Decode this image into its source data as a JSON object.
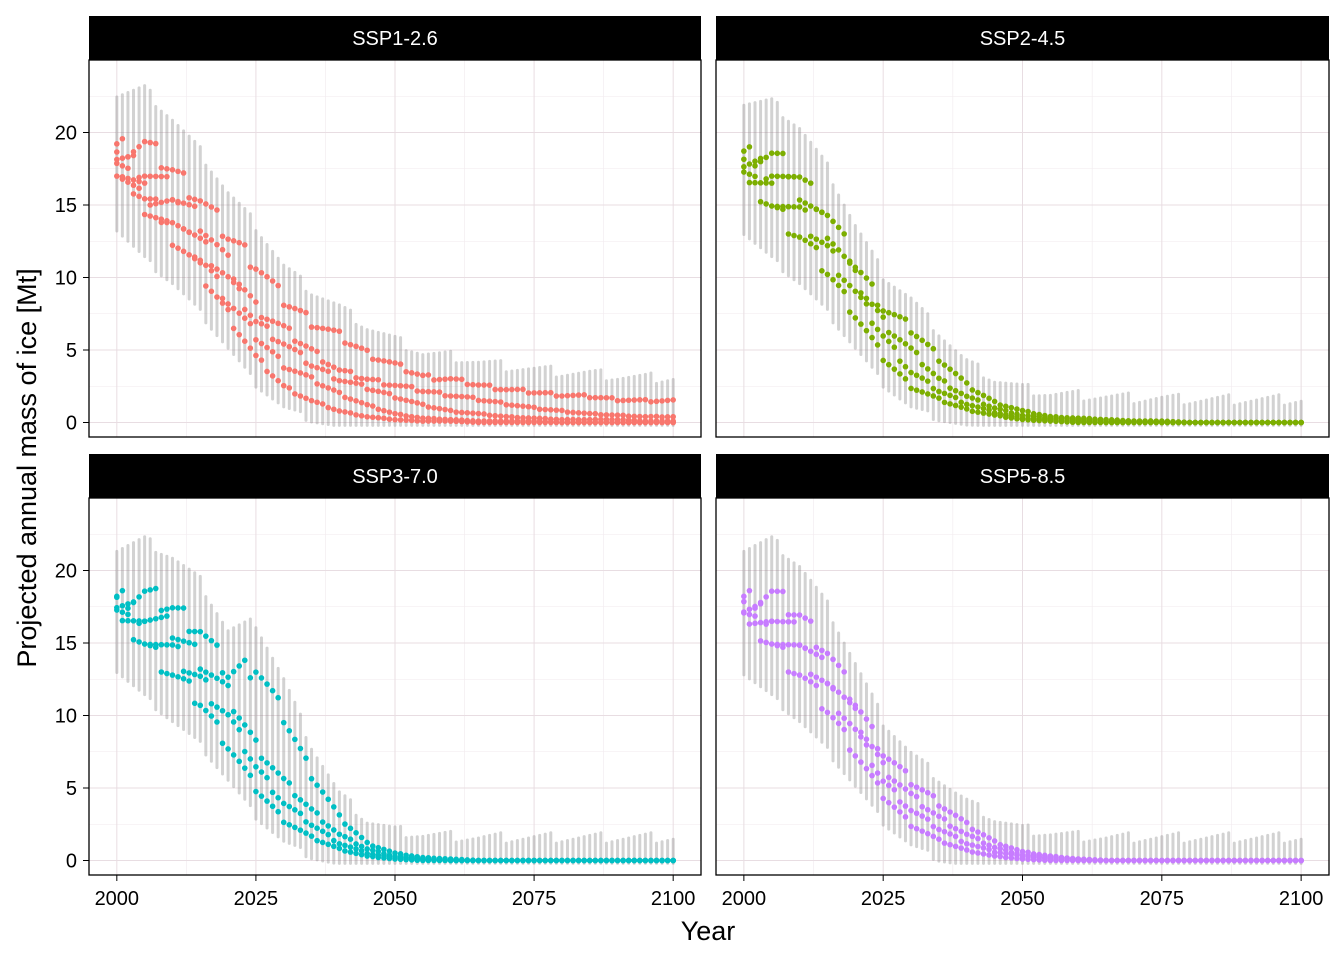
{
  "chart_data": {
    "type": "scatter",
    "facet_layout": "2x2 grid",
    "xlabel": "Year",
    "ylabel": "Projected annual mass of ice [Mt]",
    "xlim": [
      1995,
      2105
    ],
    "ylim": [
      -1.0,
      25.0
    ],
    "x_ticks": [
      2000,
      2025,
      2050,
      2075,
      2100
    ],
    "y_ticks": [
      0,
      5,
      10,
      15,
      20
    ],
    "x_tick_labels": [
      "2000",
      "2025",
      "2050",
      "2075",
      "2100"
    ],
    "y_tick_labels": [
      "0",
      "5",
      "10",
      "15",
      "20"
    ],
    "grid": true,
    "strip_style": "black background, white text",
    "uncertainty_bars": "grey vertical ranges per year",
    "panels": [
      {
        "title": "SSP1-2.6",
        "color": "#F8766D",
        "series": [
          {
            "x": [
              2000,
              2005,
              2010,
              2015,
              2020,
              2025,
              2030,
              2035,
              2040,
              2045,
              2050,
              2055,
              2060,
              2065,
              2070,
              2075,
              2080,
              2085,
              2090,
              2095,
              2100
            ],
            "y": [
              19.0,
              19.3,
              17.5,
              15.5,
              13.0,
              11.0,
              8.5,
              7.0,
              6.0,
              4.8,
              4.0,
              3.2,
              3.0,
              2.6,
              2.3,
              2.1,
              1.9,
              1.8,
              1.6,
              1.5,
              1.5
            ]
          },
          {
            "x": [
              2000,
              2005,
              2010,
              2015,
              2020,
              2025,
              2030,
              2035,
              2040,
              2045,
              2050,
              2055,
              2060,
              2065,
              2070,
              2075,
              2080,
              2085,
              2090,
              2095,
              2100
            ],
            "y": [
              18.5,
              17.5,
              16.0,
              14.0,
              11.0,
              8.0,
              6.5,
              5.0,
              3.6,
              3.0,
              2.6,
              2.2,
              1.9,
              1.6,
              1.3,
              1.0,
              0.8,
              0.6,
              0.5,
              0.4,
              0.4
            ]
          },
          {
            "x": [
              2000,
              2005,
              2010,
              2015,
              2020,
              2025,
              2030,
              2035,
              2040,
              2045,
              2050,
              2055,
              2060,
              2065,
              2070,
              2075,
              2080,
              2085,
              2090,
              2095,
              2100
            ],
            "y": [
              18.0,
              16.0,
              15.0,
              12.5,
              10.0,
              7.0,
              5.5,
              4.0,
              3.0,
              2.4,
              1.8,
              1.2,
              0.8,
              0.6,
              0.4,
              0.3,
              0.2,
              0.2,
              0.2,
              0.1,
              0.1
            ]
          },
          {
            "x": [
              2000,
              2005,
              2010,
              2015,
              2020,
              2025,
              2030,
              2035,
              2040,
              2045,
              2050,
              2055,
              2060,
              2065,
              2070,
              2075,
              2080,
              2085,
              2090,
              2095,
              2100
            ],
            "y": [
              17.8,
              15.5,
              14.0,
              11.5,
              8.5,
              6.0,
              4.0,
              3.0,
              2.0,
              1.2,
              0.6,
              0.3,
              0.2,
              0.1,
              0.1,
              0.1,
              0.0,
              0.0,
              0.0,
              0.0,
              0.0
            ]
          },
          {
            "x": [
              2000,
              2005,
              2010,
              2015,
              2020,
              2025,
              2030,
              2035,
              2040,
              2045,
              2050,
              2055,
              2060,
              2065,
              2070,
              2075,
              2080,
              2085,
              2090,
              2095,
              2100
            ],
            "y": [
              17.5,
              15.0,
              13.0,
              10.5,
              7.5,
              4.5,
              2.5,
              1.5,
              0.8,
              0.4,
              0.2,
              0.1,
              0.1,
              0.0,
              0.0,
              0.0,
              0.0,
              0.0,
              0.0,
              0.0,
              0.0
            ]
          }
        ]
      },
      {
        "title": "SSP2-4.5",
        "color": "#7CAE00",
        "series": [
          {
            "x": [
              2000,
              2005,
              2010,
              2015,
              2020,
              2025,
              2030,
              2035,
              2040,
              2045,
              2050,
              2055,
              2060,
              2065,
              2070,
              2075,
              2080,
              2085,
              2090,
              2095,
              2100
            ],
            "y": [
              18.5,
              18.5,
              17.0,
              14.5,
              11.0,
              8.0,
              6.5,
              4.5,
              2.6,
              1.4,
              0.8,
              0.4,
              0.3,
              0.2,
              0.1,
              0.1,
              0.0,
              0.0,
              0.0,
              0.0,
              0.0
            ]
          },
          {
            "x": [
              2000,
              2005,
              2010,
              2015,
              2020,
              2025,
              2030,
              2035,
              2040,
              2045,
              2050,
              2055,
              2060,
              2065,
              2070,
              2075,
              2080,
              2085,
              2090,
              2095,
              2100
            ],
            "y": [
              18.0,
              17.5,
              16.0,
              13.5,
              10.0,
              7.0,
              5.0,
              3.0,
              1.8,
              1.0,
              0.5,
              0.3,
              0.2,
              0.1,
              0.1,
              0.0,
              0.0,
              0.0,
              0.0,
              0.0,
              0.0
            ]
          },
          {
            "x": [
              2000,
              2005,
              2010,
              2015,
              2020,
              2025,
              2030,
              2035,
              2040,
              2045,
              2050,
              2055,
              2060,
              2065,
              2070,
              2075,
              2080,
              2085,
              2090,
              2095,
              2100
            ],
            "y": [
              17.5,
              16.0,
              14.5,
              12.0,
              9.0,
              6.0,
              3.5,
              2.2,
              1.3,
              0.7,
              0.3,
              0.2,
              0.1,
              0.0,
              0.0,
              0.0,
              0.0,
              0.0,
              0.0,
              0.0,
              0.0
            ]
          },
          {
            "x": [
              2000,
              2005,
              2010,
              2015,
              2020,
              2025,
              2030,
              2035,
              2040,
              2045,
              2050,
              2055,
              2060,
              2065,
              2070,
              2075,
              2080,
              2085,
              2090,
              2095,
              2100
            ],
            "y": [
              17.2,
              15.0,
              13.0,
              10.5,
              7.5,
              4.5,
              2.5,
              1.6,
              0.9,
              0.5,
              0.2,
              0.1,
              0.0,
              0.0,
              0.0,
              0.0,
              0.0,
              0.0,
              0.0,
              0.0,
              0.0
            ]
          }
        ]
      },
      {
        "title": "SSP3-7.0",
        "color": "#00BFC4",
        "series": [
          {
            "x": [
              2000,
              2005,
              2010,
              2015,
              2020,
              2025,
              2030,
              2035,
              2040,
              2045,
              2050,
              2055,
              2060,
              2065,
              2070,
              2075,
              2080,
              2085,
              2090,
              2095,
              2100
            ],
            "y": [
              18.0,
              18.5,
              17.5,
              16.0,
              13.0,
              13.5,
              10.0,
              6.0,
              3.0,
              1.2,
              0.5,
              0.2,
              0.1,
              0.0,
              0.0,
              0.0,
              0.0,
              0.0,
              0.0,
              0.0,
              0.0
            ]
          },
          {
            "x": [
              2000,
              2005,
              2010,
              2015,
              2020,
              2025,
              2030,
              2035,
              2040,
              2045,
              2050,
              2055,
              2060,
              2065,
              2070,
              2075,
              2080,
              2085,
              2090,
              2095,
              2100
            ],
            "y": [
              17.8,
              17.0,
              16.0,
              14.0,
              11.5,
              8.0,
              5.5,
              3.5,
              1.8,
              0.8,
              0.3,
              0.1,
              0.0,
              0.0,
              0.0,
              0.0,
              0.0,
              0.0,
              0.0,
              0.0,
              0.0
            ]
          },
          {
            "x": [
              2000,
              2005,
              2010,
              2015,
              2020,
              2025,
              2030,
              2035,
              2040,
              2045,
              2050,
              2055,
              2060,
              2065,
              2070,
              2075,
              2080,
              2085,
              2090,
              2095,
              2100
            ],
            "y": [
              17.5,
              16.0,
              14.5,
              12.5,
              10.0,
              6.5,
              4.0,
              2.5,
              1.2,
              0.5,
              0.2,
              0.1,
              0.0,
              0.0,
              0.0,
              0.0,
              0.0,
              0.0,
              0.0,
              0.0,
              0.0
            ]
          },
          {
            "x": [
              2000,
              2005,
              2010,
              2015,
              2020,
              2025,
              2030,
              2035,
              2040,
              2045,
              2050,
              2055,
              2060,
              2065,
              2070,
              2075,
              2080,
              2085,
              2090,
              2095,
              2100
            ],
            "y": [
              17.2,
              15.0,
              13.0,
              11.0,
              8.0,
              5.0,
              2.8,
              1.6,
              0.8,
              0.3,
              0.1,
              0.0,
              0.0,
              0.0,
              0.0,
              0.0,
              0.0,
              0.0,
              0.0,
              0.0,
              0.0
            ]
          }
        ]
      },
      {
        "title": "SSP5-8.5",
        "color": "#C77CFF",
        "series": [
          {
            "x": [
              2000,
              2005,
              2010,
              2015,
              2020,
              2025,
              2030,
              2035,
              2040,
              2045,
              2050,
              2055,
              2060,
              2065,
              2070,
              2075,
              2080,
              2085,
              2090,
              2095,
              2100
            ],
            "y": [
              18.0,
              18.5,
              17.0,
              14.5,
              11.0,
              7.5,
              5.5,
              4.0,
              2.5,
              1.3,
              0.6,
              0.3,
              0.1,
              0.0,
              0.0,
              0.0,
              0.0,
              0.0,
              0.0,
              0.0,
              0.0
            ]
          },
          {
            "x": [
              2000,
              2005,
              2010,
              2015,
              2020,
              2025,
              2030,
              2035,
              2040,
              2045,
              2050,
              2055,
              2060,
              2065,
              2070,
              2075,
              2080,
              2085,
              2090,
              2095,
              2100
            ],
            "y": [
              17.5,
              17.0,
              15.5,
              13.0,
              10.0,
              6.5,
              4.5,
              3.0,
              1.8,
              0.9,
              0.4,
              0.2,
              0.1,
              0.0,
              0.0,
              0.0,
              0.0,
              0.0,
              0.0,
              0.0,
              0.0
            ]
          },
          {
            "x": [
              2000,
              2005,
              2010,
              2015,
              2020,
              2025,
              2030,
              2035,
              2040,
              2045,
              2050,
              2055,
              2060,
              2065,
              2070,
              2075,
              2080,
              2085,
              2090,
              2095,
              2100
            ],
            "y": [
              17.2,
              16.0,
              14.5,
              12.0,
              9.0,
              5.5,
              3.5,
              2.2,
              1.2,
              0.6,
              0.3,
              0.1,
              0.0,
              0.0,
              0.0,
              0.0,
              0.0,
              0.0,
              0.0,
              0.0,
              0.0
            ]
          },
          {
            "x": [
              2000,
              2005,
              2010,
              2015,
              2020,
              2025,
              2030,
              2035,
              2040,
              2045,
              2050,
              2055,
              2060,
              2065,
              2070,
              2075,
              2080,
              2085,
              2090,
              2095,
              2100
            ],
            "y": [
              17.0,
              15.0,
              13.0,
              10.5,
              7.5,
              4.5,
              2.5,
              1.4,
              0.7,
              0.3,
              0.1,
              0.0,
              0.0,
              0.0,
              0.0,
              0.0,
              0.0,
              0.0,
              0.0,
              0.0,
              0.0
            ]
          }
        ]
      }
    ]
  }
}
